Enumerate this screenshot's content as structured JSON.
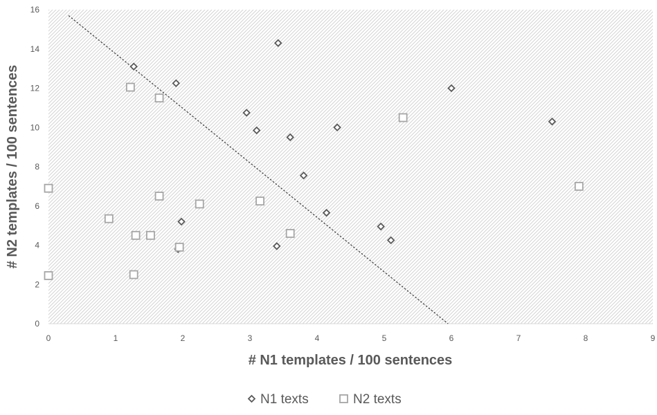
{
  "chart_data": {
    "type": "scatter",
    "xlabel": "# N1 templates / 100 sentences",
    "ylabel": "# N2 templates / 100 sentences",
    "xlim": [
      0,
      9
    ],
    "ylim": [
      0,
      16
    ],
    "xticks": [
      "0",
      "1",
      "2",
      "3",
      "4",
      "5",
      "6",
      "7",
      "8",
      "9"
    ],
    "yticks": [
      "0",
      "2",
      "4",
      "6",
      "8",
      "10",
      "12",
      "14",
      "16"
    ],
    "grid": false,
    "background_pattern": "diagonal-hatch",
    "legend_position": "bottom",
    "series": [
      {
        "name": "N1 texts",
        "marker": "diamond",
        "color": "#595959",
        "points": [
          {
            "x": 1.27,
            "y": 13.1
          },
          {
            "x": 1.9,
            "y": 12.25
          },
          {
            "x": 1.93,
            "y": 3.8
          },
          {
            "x": 1.98,
            "y": 5.2
          },
          {
            "x": 2.95,
            "y": 10.75
          },
          {
            "x": 3.1,
            "y": 9.85
          },
          {
            "x": 3.4,
            "y": 3.95
          },
          {
            "x": 3.42,
            "y": 14.3
          },
          {
            "x": 3.6,
            "y": 9.5
          },
          {
            "x": 3.8,
            "y": 7.55
          },
          {
            "x": 4.14,
            "y": 5.65
          },
          {
            "x": 4.3,
            "y": 10.0
          },
          {
            "x": 4.95,
            "y": 4.95
          },
          {
            "x": 5.1,
            "y": 4.25
          },
          {
            "x": 6.0,
            "y": 12.0
          },
          {
            "x": 7.5,
            "y": 10.3
          }
        ]
      },
      {
        "name": "N2 texts",
        "marker": "square",
        "color": "#a6a6a6",
        "points": [
          {
            "x": 0.0,
            "y": 6.9
          },
          {
            "x": 0.0,
            "y": 2.45
          },
          {
            "x": 0.9,
            "y": 5.35
          },
          {
            "x": 1.22,
            "y": 12.05
          },
          {
            "x": 1.27,
            "y": 2.5
          },
          {
            "x": 1.3,
            "y": 4.5
          },
          {
            "x": 1.52,
            "y": 4.5
          },
          {
            "x": 1.65,
            "y": 11.5
          },
          {
            "x": 1.65,
            "y": 6.5
          },
          {
            "x": 1.95,
            "y": 3.9
          },
          {
            "x": 2.25,
            "y": 6.1
          },
          {
            "x": 3.15,
            "y": 6.25
          },
          {
            "x": 3.6,
            "y": 4.6
          },
          {
            "x": 5.28,
            "y": 10.5
          },
          {
            "x": 7.9,
            "y": 7.0
          }
        ]
      }
    ],
    "trendline": {
      "style": "dotted",
      "color": "#404040",
      "x_start": 0.3,
      "y_start": 15.7,
      "x_end": 5.95,
      "y_end": 0.0
    }
  }
}
